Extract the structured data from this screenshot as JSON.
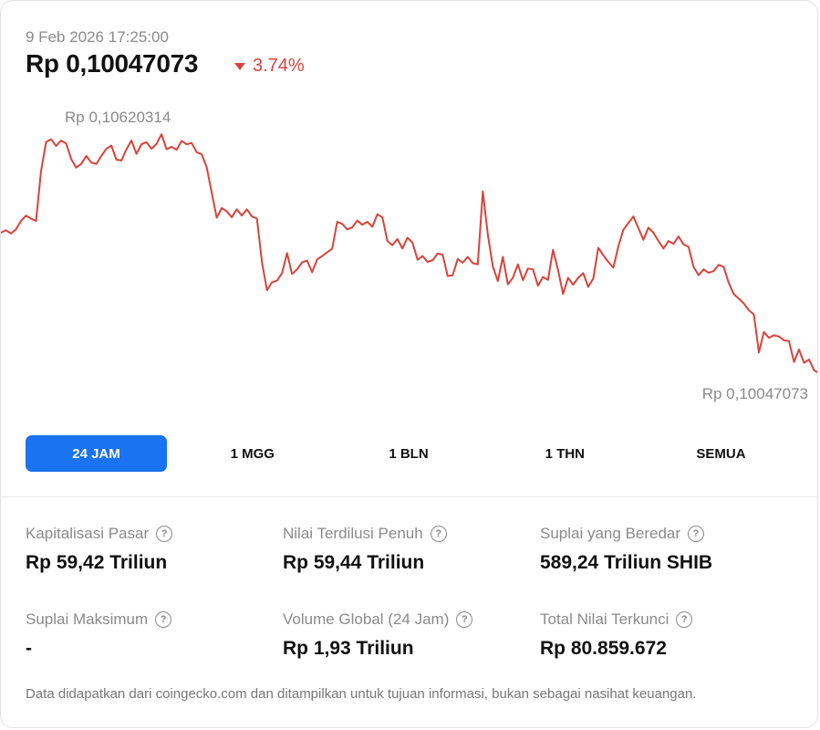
{
  "header": {
    "timestamp": "9 Feb 2026 17:25:00",
    "price": "Rp 0,10047073",
    "change": "3.74%",
    "change_color": "#d6443c"
  },
  "chart_data": {
    "type": "line",
    "title": "",
    "xlabel": "",
    "ylabel": "",
    "high_label": "Rp 0,10620314",
    "low_label": "Rp 0,10047073",
    "ylim": [
      0.10047073,
      0.10620314
    ],
    "series": [
      {
        "color": "#d6443c",
        "values": [
          0.10384,
          0.1039,
          0.10382,
          0.10392,
          0.10412,
          0.10425,
          0.10418,
          0.10412,
          0.10532,
          0.10601,
          0.10608,
          0.10592,
          0.10605,
          0.10598,
          0.10561,
          0.1054,
          0.10549,
          0.10568,
          0.10552,
          0.10549,
          0.10568,
          0.10585,
          0.10593,
          0.10559,
          0.10557,
          0.10584,
          0.10605,
          0.10573,
          0.10596,
          0.10601,
          0.10585,
          0.10597,
          0.1062,
          0.10584,
          0.1059,
          0.10583,
          0.10604,
          0.10596,
          0.10599,
          0.10577,
          0.10572,
          0.10541,
          0.1048,
          0.1042,
          0.10443,
          0.10435,
          0.10421,
          0.1044,
          0.10425,
          0.1044,
          0.10423,
          0.10418,
          0.10313,
          0.10246,
          0.10265,
          0.10269,
          0.10287,
          0.10335,
          0.10285,
          0.10296,
          0.10313,
          0.10317,
          0.10289,
          0.1032,
          0.10328,
          0.10337,
          0.10346,
          0.1041,
          0.10405,
          0.10392,
          0.10397,
          0.10413,
          0.10403,
          0.1041,
          0.10398,
          0.10428,
          0.10421,
          0.10364,
          0.10354,
          0.10369,
          0.10346,
          0.10372,
          0.1036,
          0.10319,
          0.10328,
          0.10314,
          0.10318,
          0.10334,
          0.10331,
          0.1028,
          0.10282,
          0.10321,
          0.10312,
          0.10326,
          0.10311,
          0.10308,
          0.10483,
          0.1038,
          0.10303,
          0.10268,
          0.10326,
          0.1026,
          0.10276,
          0.10308,
          0.1027,
          0.10298,
          0.10296,
          0.10257,
          0.10278,
          0.10271,
          0.10343,
          0.10295,
          0.10237,
          0.10276,
          0.10259,
          0.10276,
          0.10287,
          0.10254,
          0.10274,
          0.10348,
          0.1033,
          0.10314,
          0.103,
          0.10351,
          0.10391,
          0.10407,
          0.10423,
          0.10395,
          0.10367,
          0.10396,
          0.10384,
          0.10364,
          0.10346,
          0.10364,
          0.10357,
          0.10375,
          0.10356,
          0.1035,
          0.10302,
          0.10282,
          0.10296,
          0.10288,
          0.10292,
          0.10307,
          0.10302,
          0.10264,
          0.10237,
          0.10226,
          0.10214,
          0.10198,
          0.10188,
          0.10097,
          0.10146,
          0.10132,
          0.10138,
          0.10135,
          0.10126,
          0.10124,
          0.10074,
          0.10104,
          0.10072,
          0.1008,
          0.10054,
          0.10047
        ]
      }
    ]
  },
  "ranges": [
    {
      "label": "24 JAM",
      "active": true
    },
    {
      "label": "1 MGG",
      "active": false
    },
    {
      "label": "1 BLN",
      "active": false
    },
    {
      "label": "1 THN",
      "active": false
    },
    {
      "label": "SEMUA",
      "active": false
    }
  ],
  "stats": [
    {
      "label": "Kapitalisasi Pasar",
      "value": "Rp 59,42 Triliun"
    },
    {
      "label": "Nilai Terdilusi Penuh",
      "value": "Rp 59,44 Triliun"
    },
    {
      "label": "Suplai yang Beredar",
      "value": "589,24 Triliun SHIB"
    },
    {
      "label": "Suplai Maksimum",
      "value": "-"
    },
    {
      "label": "Volume Global (24 Jam)",
      "value": "Rp 1,93 Triliun"
    },
    {
      "label": "Total Nilai Terkunci",
      "value": "Rp 80.859.672"
    }
  ],
  "help_icon": "question-circle-icon",
  "help_glyph": "?",
  "footer": "Data didapatkan dari coingecko.com dan ditampilkan untuk tujuan informasi, bukan sebagai nasihat keuangan.",
  "accent_color": "#1a73f0"
}
